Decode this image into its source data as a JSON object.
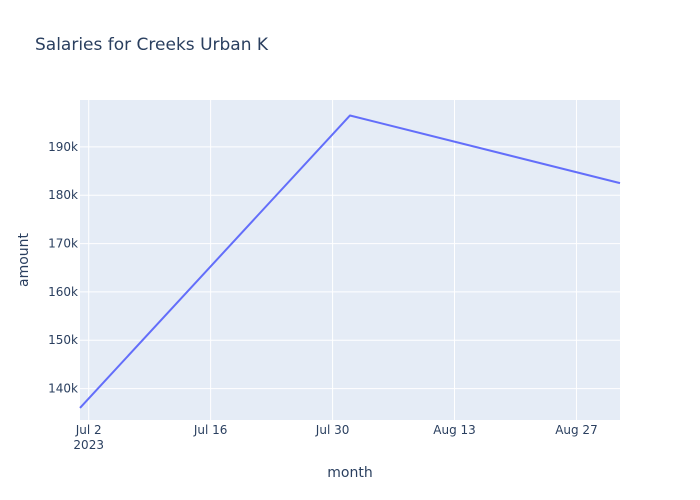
{
  "chart_data": {
    "type": "line",
    "title": "Salaries for Creeks Urban K",
    "xlabel": "month",
    "ylabel": "amount",
    "x_tick_labels": [
      "Jul 2",
      "Jul 16",
      "Jul 30",
      "Aug 13",
      "Aug 27"
    ],
    "x_tick_sublabel": "2023",
    "y_tick_labels": [
      "140k",
      "150k",
      "160k",
      "170k",
      "180k",
      "190k"
    ],
    "y_ticks": [
      140000,
      150000,
      160000,
      170000,
      180000,
      190000
    ],
    "xlim": [
      "2023-07-01",
      "2023-09-01"
    ],
    "ylim": [
      133500,
      199700
    ],
    "series": [
      {
        "x": [
          "2023-07-01",
          "2023-08-01",
          "2023-09-01"
        ],
        "y": [
          136000,
          196500,
          182500
        ],
        "color": "#636efa"
      }
    ],
    "plot_background": "#e5ecf6",
    "grid": true
  }
}
